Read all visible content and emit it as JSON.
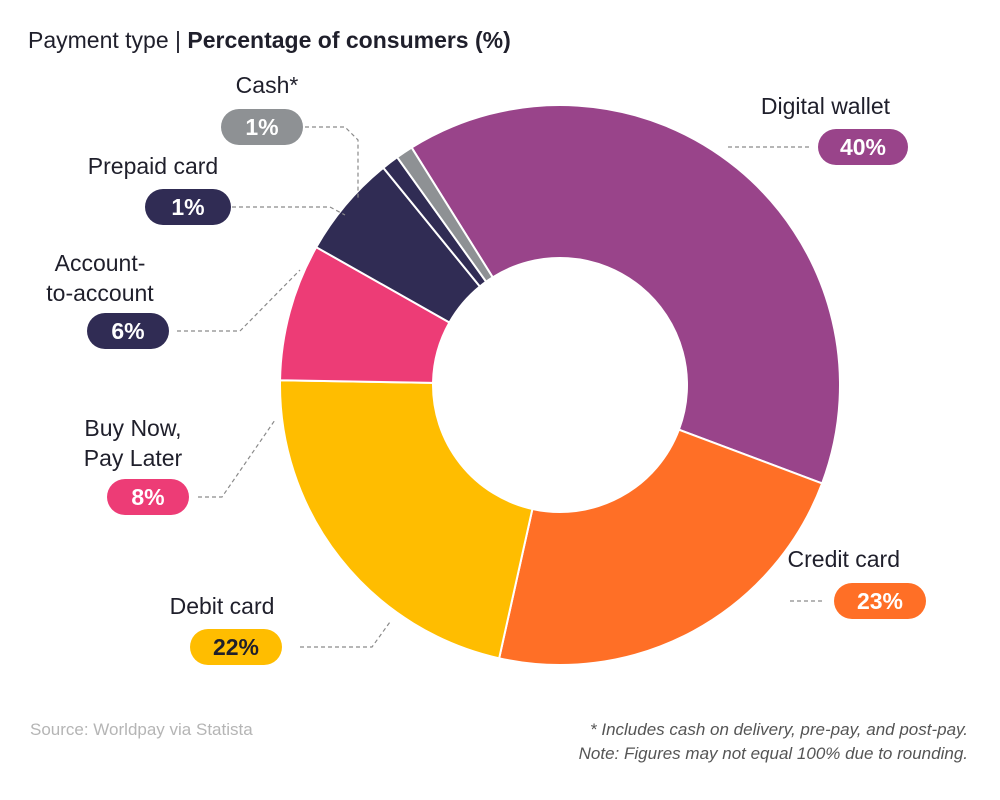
{
  "title": {
    "prefix": "Payment type | ",
    "bold": "Percentage of consumers (%)"
  },
  "chart_data": {
    "type": "donut",
    "title": "Payment type | Percentage of consumers (%)",
    "unit": "%",
    "categories": [
      "Digital wallet",
      "Credit card",
      "Debit card",
      "Buy Now, Pay Later",
      "Account-to-account",
      "Prepaid card",
      "Cash*"
    ],
    "values": [
      40,
      23,
      22,
      8,
      6,
      1,
      1
    ],
    "value_labels": [
      "40%",
      "23%",
      "22%",
      "8%",
      "6%",
      "1%",
      "1%"
    ],
    "colors": [
      "#99448a",
      "#ff6f26",
      "#ffbd00",
      "#ed3c76",
      "#302c54",
      "#302c54",
      "#8e9194"
    ],
    "start_angle_deg": 328,
    "direction": "clockwise",
    "legend": "none (callout labels)"
  },
  "footer": {
    "source": "Source: Worldpay via Statista",
    "note_line1": "* Includes cash on delivery, pre-pay, and post-pay.",
    "note_line2": "Note: Figures may not equal 100% due to rounding."
  }
}
